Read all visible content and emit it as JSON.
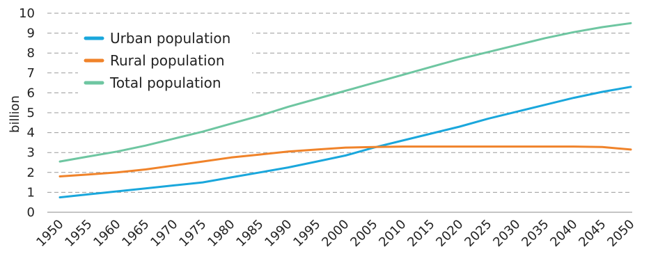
{
  "chart_data": {
    "type": "line",
    "title": "",
    "xlabel": "",
    "ylabel": "billion",
    "x": [
      1950,
      1955,
      1960,
      1965,
      1970,
      1975,
      1980,
      1985,
      1990,
      1995,
      2000,
      2005,
      2010,
      2015,
      2020,
      2025,
      2030,
      2035,
      2040,
      2045,
      2050
    ],
    "xtick_labels": [
      "1950",
      "1955",
      "1960",
      "1965",
      "1970",
      "1975",
      "1980",
      "1985",
      "1990",
      "1995",
      "2000",
      "2005",
      "2010",
      "2015",
      "2020",
      "2025",
      "2030",
      "2035",
      "2040",
      "2045",
      "2050"
    ],
    "ylim": [
      0,
      10
    ],
    "yticks": [
      0,
      1,
      2,
      3,
      4,
      5,
      6,
      7,
      8,
      9,
      10
    ],
    "grid": "horizontal dashed",
    "legend_position": "top-left",
    "series": [
      {
        "name": "Urban population",
        "color": "#1aa7dc",
        "values": [
          0.75,
          0.9,
          1.05,
          1.2,
          1.35,
          1.5,
          1.75,
          2.0,
          2.25,
          2.55,
          2.85,
          3.25,
          3.6,
          3.95,
          4.3,
          4.7,
          5.05,
          5.4,
          5.75,
          6.05,
          6.3
        ]
      },
      {
        "name": "Rural population",
        "color": "#f0832a",
        "values": [
          1.8,
          1.9,
          2.0,
          2.15,
          2.35,
          2.55,
          2.75,
          2.9,
          3.05,
          3.15,
          3.25,
          3.28,
          3.3,
          3.3,
          3.3,
          3.3,
          3.3,
          3.3,
          3.3,
          3.28,
          3.15
        ]
      },
      {
        "name": "Total population",
        "color": "#6ec6a1",
        "values": [
          2.55,
          2.8,
          3.05,
          3.35,
          3.7,
          4.05,
          4.45,
          4.85,
          5.3,
          5.7,
          6.1,
          6.5,
          6.9,
          7.3,
          7.7,
          8.05,
          8.4,
          8.75,
          9.05,
          9.3,
          9.5
        ]
      }
    ]
  }
}
